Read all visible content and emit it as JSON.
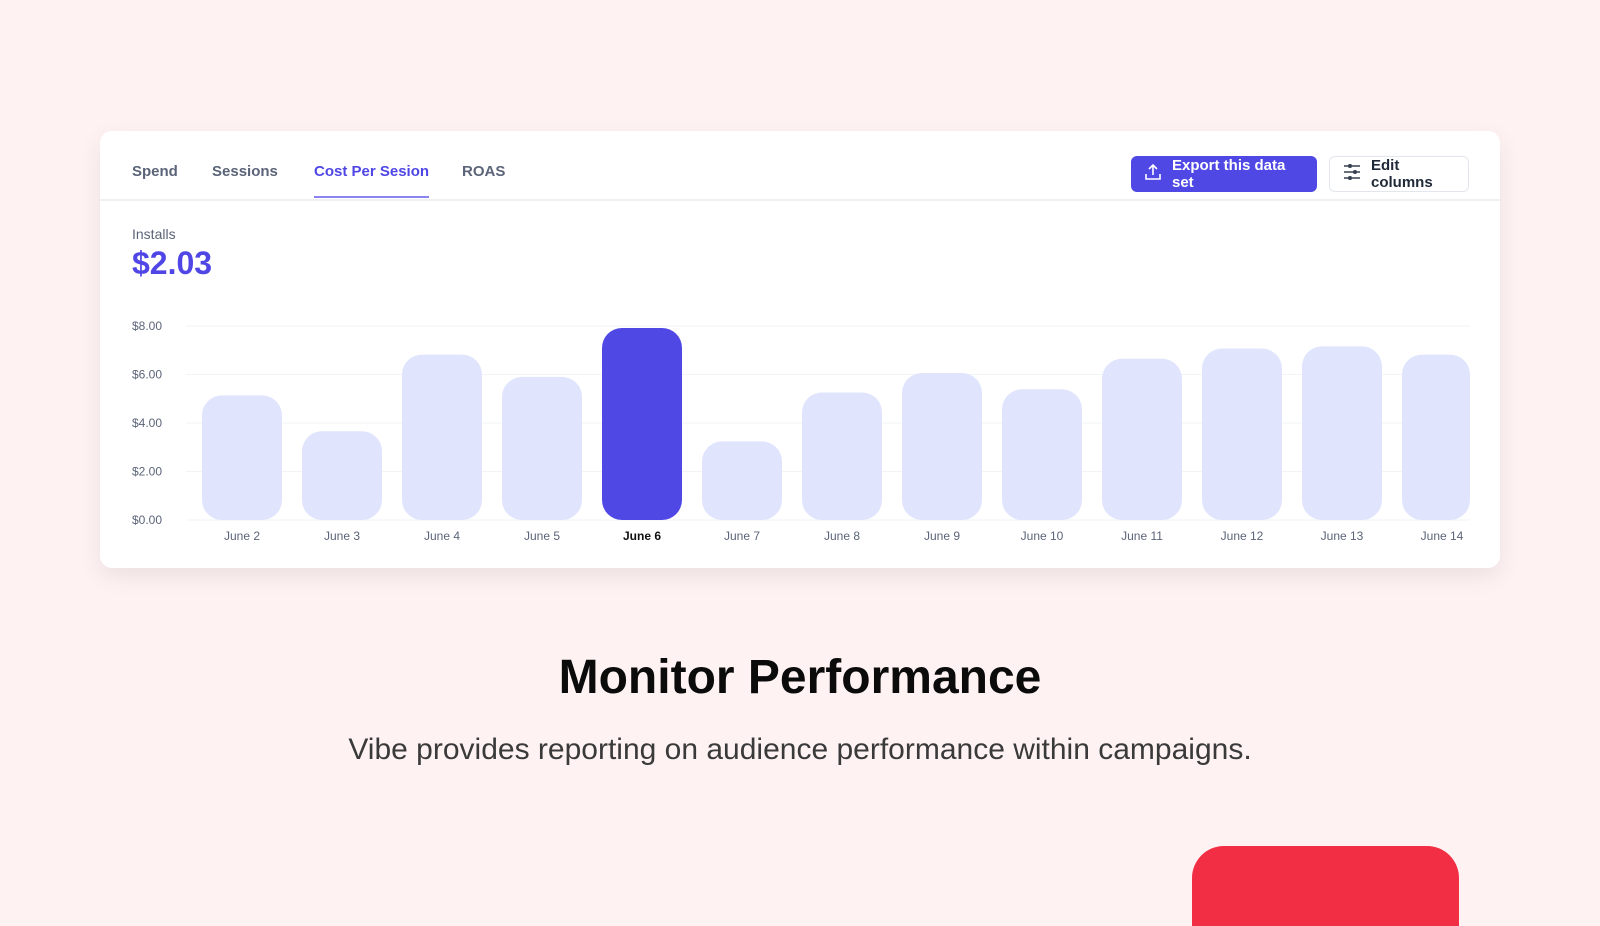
{
  "tabs": [
    {
      "label": "Spend"
    },
    {
      "label": "Sessions"
    },
    {
      "label": "Cost Per Sesion",
      "active": true
    },
    {
      "label": "ROAS"
    }
  ],
  "toolbar": {
    "export_label": "Export this data set",
    "edit_label": "Edit columns"
  },
  "metric": {
    "label": "Installs",
    "value": "$2.03"
  },
  "colors": {
    "accent": "#5048e5",
    "bar": "#e0e5fd",
    "highlight": "#5048e5"
  },
  "chart_data": {
    "type": "bar",
    "categories": [
      "June 2",
      "June 3",
      "June 4",
      "June 5",
      "June 6",
      "June 7",
      "June 8",
      "June 9",
      "June 10",
      "June 11",
      "June 12",
      "June 13",
      "June 14"
    ],
    "values": [
      5.14,
      3.66,
      6.82,
      5.9,
      7.92,
      3.24,
      5.26,
      6.06,
      5.39,
      6.65,
      7.07,
      7.16,
      6.82
    ],
    "highlight": "June 6",
    "yticks": [
      "$0.00",
      "$2.00",
      "$4.00",
      "$6.00",
      "$8.00"
    ],
    "ylim": [
      0,
      8
    ],
    "grid": true,
    "title": "",
    "xlabel": "",
    "ylabel": ""
  },
  "hero": {
    "title": "Monitor Performance",
    "subtitle": "Vibe provides reporting on audience performance within campaigns."
  }
}
